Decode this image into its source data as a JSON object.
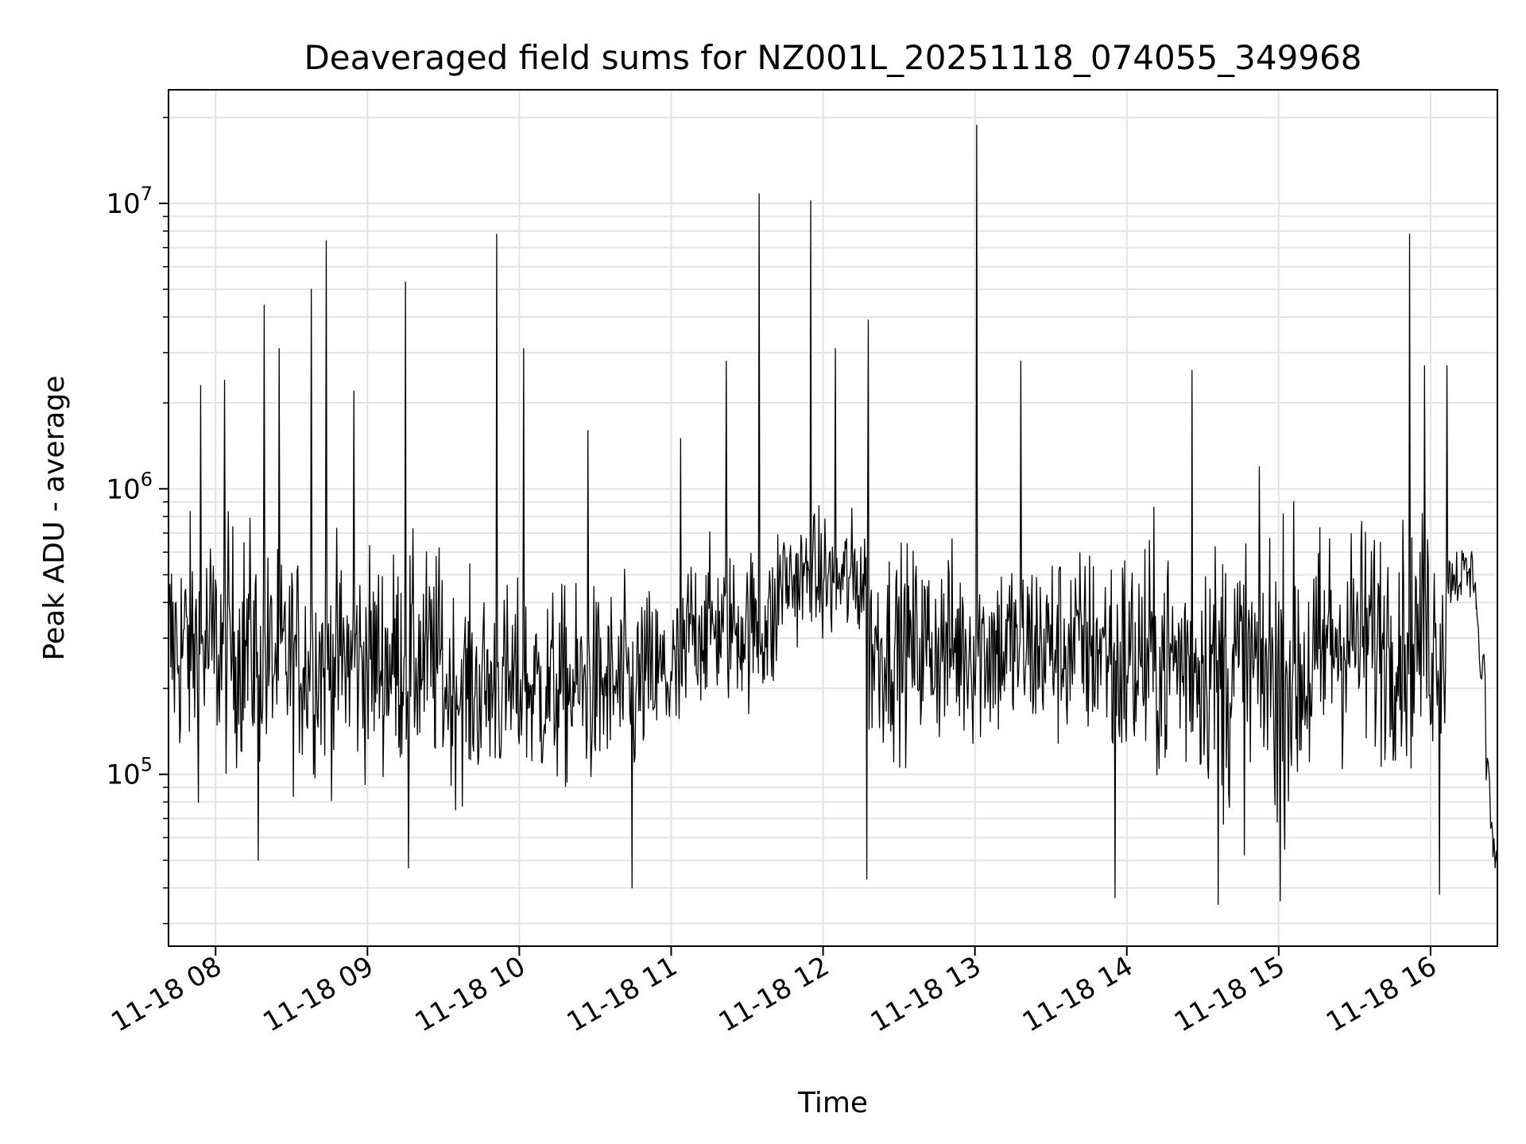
{
  "chart_data": {
    "type": "line",
    "title": "Deaveraged field sums for NZ001L_20251118_074055_349968",
    "xlabel": "Time",
    "ylabel": "Peak ADU - average",
    "yscale": "log",
    "ylim": [
      25000,
      25000000
    ],
    "xlim_hours": [
      7.69,
      16.44
    ],
    "grid": true,
    "line_color": "#000000",
    "x_ticks": [
      {
        "hour": 8,
        "label": "11-18 08"
      },
      {
        "hour": 9,
        "label": "11-18 09"
      },
      {
        "hour": 10,
        "label": "11-18 10"
      },
      {
        "hour": 11,
        "label": "11-18 11"
      },
      {
        "hour": 12,
        "label": "11-18 12"
      },
      {
        "hour": 13,
        "label": "11-18 13"
      },
      {
        "hour": 14,
        "label": "11-18 14"
      },
      {
        "hour": 15,
        "label": "11-18 15"
      },
      {
        "hour": 16,
        "label": "11-18 16"
      }
    ],
    "y_ticks": [
      {
        "value": 100000,
        "base": "10",
        "exp": "5"
      },
      {
        "value": 1000000,
        "base": "10",
        "exp": "6"
      },
      {
        "value": 10000000,
        "base": "10",
        "exp": "7"
      }
    ],
    "series": [
      {
        "name": "Peak ADU - average",
        "approx_points": 1750,
        "segments": [
          {
            "start_hour": 7.69,
            "end_hour": 8.3,
            "median": 280000,
            "spread_log10": 0.55
          },
          {
            "start_hour": 8.3,
            "end_hour": 9.5,
            "median": 250000,
            "spread_log10": 0.5
          },
          {
            "start_hour": 9.5,
            "end_hour": 10.8,
            "median": 200000,
            "spread_log10": 0.45
          },
          {
            "start_hour": 10.8,
            "end_hour": 11.1,
            "median": 220000,
            "spread_log10": 0.4
          },
          {
            "start_hour": 11.1,
            "end_hour": 11.7,
            "median": 330000,
            "spread_log10": 0.35
          },
          {
            "start_hour": 11.7,
            "end_hour": 12.3,
            "median": 480000,
            "spread_log10": 0.3
          },
          {
            "start_hour": 12.3,
            "end_hour": 13.9,
            "median": 280000,
            "spread_log10": 0.45
          },
          {
            "start_hour": 13.9,
            "end_hour": 14.6,
            "median": 250000,
            "spread_log10": 0.55
          },
          {
            "start_hour": 14.6,
            "end_hour": 15.3,
            "median": 230000,
            "spread_log10": 0.65
          },
          {
            "start_hour": 15.3,
            "end_hour": 16.1,
            "median": 300000,
            "spread_log10": 0.55
          },
          {
            "start_hour": 16.1,
            "end_hour": 16.3,
            "median": 500000,
            "spread_log10": 0.15
          },
          {
            "start_hour": 16.3,
            "end_hour": 16.44,
            "median": 150000,
            "spread_log10": 0.15
          }
        ],
        "end_tail": [
          {
            "hour": 16.3,
            "value": 380000
          },
          {
            "hour": 16.34,
            "value": 230000
          },
          {
            "hour": 16.38,
            "value": 110000
          },
          {
            "hour": 16.41,
            "value": 60000
          },
          {
            "hour": 16.44,
            "value": 48000
          }
        ],
        "spikes": [
          {
            "hour": 7.9,
            "value": 2300000
          },
          {
            "hour": 8.06,
            "value": 2400000
          },
          {
            "hour": 8.32,
            "value": 4400000
          },
          {
            "hour": 8.42,
            "value": 3100000
          },
          {
            "hour": 8.63,
            "value": 5000000
          },
          {
            "hour": 8.73,
            "value": 7400000
          },
          {
            "hour": 8.91,
            "value": 2200000
          },
          {
            "hour": 9.25,
            "value": 5300000
          },
          {
            "hour": 9.85,
            "value": 7800000
          },
          {
            "hour": 10.03,
            "value": 3100000
          },
          {
            "hour": 10.45,
            "value": 1600000
          },
          {
            "hour": 11.06,
            "value": 1500000
          },
          {
            "hour": 11.36,
            "value": 2800000
          },
          {
            "hour": 11.58,
            "value": 10800000
          },
          {
            "hour": 11.92,
            "value": 10200000
          },
          {
            "hour": 12.08,
            "value": 3100000
          },
          {
            "hour": 12.3,
            "value": 3900000
          },
          {
            "hour": 13.01,
            "value": 18800000
          },
          {
            "hour": 13.3,
            "value": 2800000
          },
          {
            "hour": 14.43,
            "value": 2600000
          },
          {
            "hour": 15.86,
            "value": 7800000
          },
          {
            "hour": 15.96,
            "value": 2700000
          },
          {
            "hour": 16.11,
            "value": 2700000
          }
        ],
        "dips": [
          {
            "hour": 8.28,
            "value": 50000
          },
          {
            "hour": 9.27,
            "value": 47000
          },
          {
            "hour": 10.74,
            "value": 40000
          },
          {
            "hour": 12.29,
            "value": 43000
          },
          {
            "hour": 13.92,
            "value": 37000
          },
          {
            "hour": 14.6,
            "value": 35000
          },
          {
            "hour": 15.01,
            "value": 36000
          },
          {
            "hour": 16.06,
            "value": 38000
          }
        ]
      }
    ]
  }
}
